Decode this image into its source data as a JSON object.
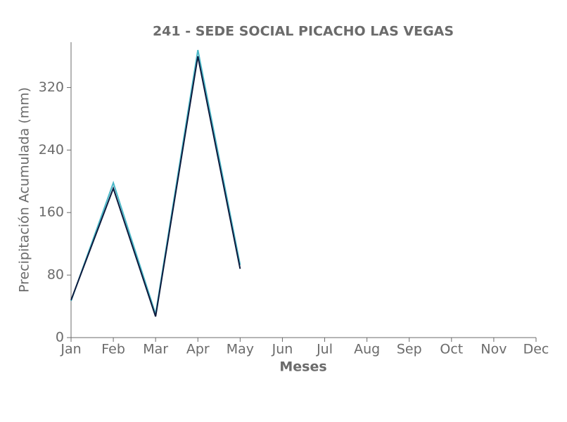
{
  "chart_data": {
    "type": "line",
    "title": "241 - SEDE SOCIAL PICACHO LAS VEGAS",
    "x_label": "Meses",
    "y_label": "Precipitación Acumulada (mm)",
    "categories": [
      "Jan",
      "Feb",
      "Mar",
      "Apr",
      "May",
      "Jun",
      "Jul",
      "Aug",
      "Sep",
      "Oct",
      "Nov",
      "Dec"
    ],
    "series": [
      {
        "color": "#4bb8c8",
        "values": [
          47,
          198,
          30,
          368,
          93,
          null,
          null,
          null,
          null,
          null,
          null,
          null
        ]
      },
      {
        "color": "#0d1b3e",
        "values": [
          48,
          191,
          27,
          360,
          88,
          null,
          null,
          null,
          null,
          null,
          null,
          null
        ]
      }
    ],
    "ylim": [
      0,
      378
    ],
    "yticks": [
      0,
      80,
      160,
      240,
      320
    ],
    "grid": false
  }
}
